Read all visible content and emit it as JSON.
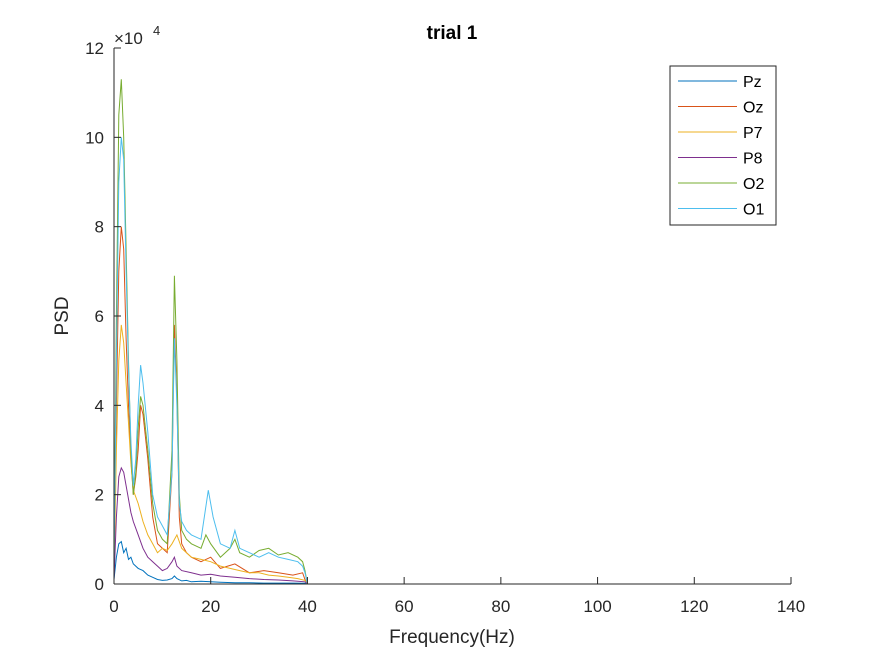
{
  "chart_data": {
    "type": "line",
    "title": "trial 1",
    "xlabel": "Frequency(Hz)",
    "ylabel": "PSD",
    "xlim": [
      0,
      140
    ],
    "ylim": [
      0,
      120000
    ],
    "xticks": [
      0,
      20,
      40,
      60,
      80,
      100,
      120,
      140
    ],
    "xtick_labels": [
      "0",
      "20",
      "40",
      "60",
      "80",
      "100",
      "120",
      "140"
    ],
    "yticks": [
      0,
      20000,
      40000,
      60000,
      80000,
      100000,
      120000
    ],
    "ytick_labels": [
      "0",
      "2",
      "4",
      "6",
      "8",
      "10",
      "12"
    ],
    "y_exponent_base": "×10",
    "y_exponent_power": "4",
    "legend_position": "top-right",
    "grid": false,
    "series": [
      {
        "name": "Pz",
        "color": "#0072BD",
        "points": [
          [
            0,
            1000
          ],
          [
            0.5,
            6000
          ],
          [
            1,
            9000
          ],
          [
            1.5,
            9500
          ],
          [
            2,
            7000
          ],
          [
            2.5,
            8000
          ],
          [
            3,
            5500
          ],
          [
            3.5,
            6000
          ],
          [
            4,
            4500
          ],
          [
            5,
            3500
          ],
          [
            6,
            3000
          ],
          [
            7,
            2000
          ],
          [
            8,
            1500
          ],
          [
            9,
            1000
          ],
          [
            10,
            800
          ],
          [
            11,
            900
          ],
          [
            12,
            1200
          ],
          [
            12.5,
            1800
          ],
          [
            13,
            1200
          ],
          [
            14,
            700
          ],
          [
            15,
            800
          ],
          [
            16,
            500
          ],
          [
            18,
            600
          ],
          [
            20,
            500
          ],
          [
            22,
            400
          ],
          [
            25,
            300
          ],
          [
            28,
            300
          ],
          [
            31,
            200
          ],
          [
            34,
            200
          ],
          [
            37,
            200
          ],
          [
            39.5,
            150
          ],
          [
            40,
            0
          ],
          [
            60,
            0
          ],
          [
            80,
            0
          ],
          [
            100,
            0
          ],
          [
            125,
            0
          ]
        ]
      },
      {
        "name": "Oz",
        "color": "#D95319",
        "points": [
          [
            0,
            3000
          ],
          [
            0.5,
            40000
          ],
          [
            1,
            70000
          ],
          [
            1.5,
            80000
          ],
          [
            2,
            75000
          ],
          [
            2.5,
            55000
          ],
          [
            3,
            40000
          ],
          [
            3.5,
            28000
          ],
          [
            4,
            20000
          ],
          [
            4.5,
            24000
          ],
          [
            5,
            30000
          ],
          [
            5.5,
            40000
          ],
          [
            6,
            38000
          ],
          [
            7,
            28000
          ],
          [
            8,
            15000
          ],
          [
            9,
            9000
          ],
          [
            10,
            8000
          ],
          [
            11,
            7000
          ],
          [
            12,
            25000
          ],
          [
            12.5,
            58000
          ],
          [
            13,
            42000
          ],
          [
            13.5,
            15000
          ],
          [
            14,
            9000
          ],
          [
            15,
            7000
          ],
          [
            16,
            6000
          ],
          [
            18,
            5000
          ],
          [
            20,
            6000
          ],
          [
            22,
            3500
          ],
          [
            25,
            4500
          ],
          [
            28,
            2500
          ],
          [
            31,
            3000
          ],
          [
            34,
            2500
          ],
          [
            37,
            2000
          ],
          [
            39,
            2500
          ],
          [
            39.5,
            1000
          ],
          [
            40,
            0
          ],
          [
            60,
            0
          ],
          [
            80,
            0
          ],
          [
            100,
            0
          ],
          [
            125,
            0
          ]
        ]
      },
      {
        "name": "P7",
        "color": "#EDB120",
        "points": [
          [
            0,
            2000
          ],
          [
            0.5,
            30000
          ],
          [
            1,
            50000
          ],
          [
            1.5,
            58000
          ],
          [
            2,
            54000
          ],
          [
            2.5,
            45000
          ],
          [
            3,
            36000
          ],
          [
            3.5,
            27000
          ],
          [
            4,
            21000
          ],
          [
            5,
            18000
          ],
          [
            6,
            14000
          ],
          [
            7,
            11000
          ],
          [
            8,
            9000
          ],
          [
            9,
            7000
          ],
          [
            10,
            8000
          ],
          [
            11,
            7500
          ],
          [
            12,
            9000
          ],
          [
            13,
            11000
          ],
          [
            14,
            8000
          ],
          [
            15,
            7000
          ],
          [
            16,
            6000
          ],
          [
            18,
            5500
          ],
          [
            20,
            5000
          ],
          [
            22,
            4000
          ],
          [
            24,
            3500
          ],
          [
            26,
            3000
          ],
          [
            28,
            2500
          ],
          [
            30,
            2500
          ],
          [
            32,
            2000
          ],
          [
            34,
            1800
          ],
          [
            36,
            1500
          ],
          [
            38,
            1200
          ],
          [
            39.5,
            800
          ],
          [
            40,
            0
          ],
          [
            60,
            0
          ],
          [
            80,
            0
          ],
          [
            100,
            0
          ],
          [
            125,
            0
          ]
        ]
      },
      {
        "name": "P8",
        "color": "#7E2F8E",
        "points": [
          [
            0,
            1000
          ],
          [
            0.5,
            15000
          ],
          [
            1,
            24000
          ],
          [
            1.5,
            26000
          ],
          [
            2,
            25000
          ],
          [
            2.5,
            22000
          ],
          [
            3,
            19000
          ],
          [
            3.5,
            16000
          ],
          [
            4,
            14000
          ],
          [
            5,
            11000
          ],
          [
            6,
            8000
          ],
          [
            7,
            6000
          ],
          [
            8,
            5000
          ],
          [
            9,
            4000
          ],
          [
            10,
            3000
          ],
          [
            11,
            3500
          ],
          [
            12,
            5000
          ],
          [
            12.5,
            6000
          ],
          [
            13,
            4000
          ],
          [
            14,
            3000
          ],
          [
            16,
            2500
          ],
          [
            18,
            2000
          ],
          [
            20,
            2200
          ],
          [
            22,
            1800
          ],
          [
            25,
            1500
          ],
          [
            28,
            1200
          ],
          [
            31,
            1000
          ],
          [
            34,
            900
          ],
          [
            37,
            700
          ],
          [
            39.5,
            500
          ],
          [
            40,
            0
          ],
          [
            60,
            0
          ],
          [
            80,
            0
          ],
          [
            100,
            0
          ],
          [
            125,
            0
          ]
        ]
      },
      {
        "name": "O2",
        "color": "#77AC30",
        "points": [
          [
            0,
            5000
          ],
          [
            0.5,
            60000
          ],
          [
            1,
            105000
          ],
          [
            1.5,
            113000
          ],
          [
            2,
            100000
          ],
          [
            2.5,
            75000
          ],
          [
            3,
            50000
          ],
          [
            3.5,
            30000
          ],
          [
            4,
            20000
          ],
          [
            4.5,
            25000
          ],
          [
            5,
            35000
          ],
          [
            5.5,
            42000
          ],
          [
            6,
            40000
          ],
          [
            7,
            30000
          ],
          [
            8,
            18000
          ],
          [
            9,
            12000
          ],
          [
            10,
            10000
          ],
          [
            11,
            9000
          ],
          [
            12,
            30000
          ],
          [
            12.5,
            69000
          ],
          [
            13,
            50000
          ],
          [
            13.5,
            20000
          ],
          [
            14,
            12000
          ],
          [
            15,
            10000
          ],
          [
            16,
            9000
          ],
          [
            18,
            8000
          ],
          [
            19,
            11000
          ],
          [
            20,
            9000
          ],
          [
            22,
            6000
          ],
          [
            24,
            8000
          ],
          [
            25,
            10000
          ],
          [
            26,
            7000
          ],
          [
            28,
            6000
          ],
          [
            30,
            7500
          ],
          [
            32,
            8000
          ],
          [
            34,
            6500
          ],
          [
            36,
            7000
          ],
          [
            38,
            6000
          ],
          [
            39,
            5000
          ],
          [
            39.5,
            3000
          ],
          [
            40,
            0
          ],
          [
            60,
            0
          ],
          [
            80,
            0
          ],
          [
            100,
            0
          ],
          [
            125,
            0
          ]
        ]
      },
      {
        "name": "O1",
        "color": "#4DBEEE",
        "points": [
          [
            0,
            4000
          ],
          [
            0.5,
            50000
          ],
          [
            1,
            90000
          ],
          [
            1.5,
            100000
          ],
          [
            2,
            95000
          ],
          [
            2.5,
            70000
          ],
          [
            3,
            48000
          ],
          [
            3.5,
            32000
          ],
          [
            4,
            22000
          ],
          [
            4.5,
            28000
          ],
          [
            5,
            40000
          ],
          [
            5.5,
            49000
          ],
          [
            6,
            45000
          ],
          [
            7,
            34000
          ],
          [
            8,
            20000
          ],
          [
            9,
            15000
          ],
          [
            10,
            13000
          ],
          [
            11,
            11000
          ],
          [
            12,
            25000
          ],
          [
            12.5,
            55000
          ],
          [
            13,
            40000
          ],
          [
            13.5,
            18000
          ],
          [
            14,
            14000
          ],
          [
            15,
            12000
          ],
          [
            16,
            11000
          ],
          [
            18,
            10000
          ],
          [
            19.5,
            21000
          ],
          [
            20.5,
            15000
          ],
          [
            22,
            9000
          ],
          [
            24,
            8000
          ],
          [
            25,
            12000
          ],
          [
            26,
            8000
          ],
          [
            28,
            7000
          ],
          [
            30,
            6000
          ],
          [
            32,
            7000
          ],
          [
            34,
            6000
          ],
          [
            36,
            5500
          ],
          [
            38,
            5000
          ],
          [
            39,
            4000
          ],
          [
            39.5,
            2500
          ],
          [
            40,
            0
          ],
          [
            60,
            0
          ],
          [
            80,
            0
          ],
          [
            100,
            0
          ],
          [
            125,
            0
          ]
        ]
      }
    ]
  }
}
